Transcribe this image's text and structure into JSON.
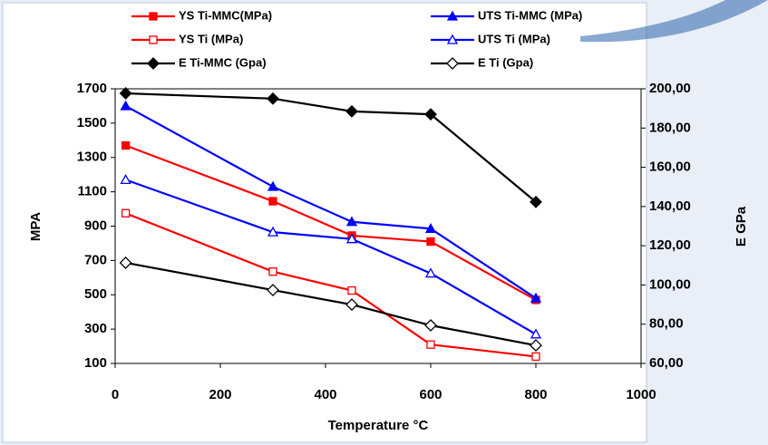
{
  "chart_data": {
    "type": "line",
    "x": [
      20,
      300,
      450,
      600,
      800
    ],
    "xlim": [
      0,
      1000
    ],
    "xticks": [
      0,
      200,
      400,
      600,
      800,
      1000
    ],
    "ylim": [
      100,
      1700
    ],
    "yticks": [
      100,
      300,
      500,
      700,
      900,
      1100,
      1300,
      1500,
      1700
    ],
    "y2lim": [
      60,
      200
    ],
    "y2ticks": [
      {
        "value": 60,
        "label": "60,00"
      },
      {
        "value": 80,
        "label": "80,00"
      },
      {
        "value": 100,
        "label": "100,00"
      },
      {
        "value": 120,
        "label": "120,00"
      },
      {
        "value": 140,
        "label": "140,00"
      },
      {
        "value": 160,
        "label": "160,00"
      },
      {
        "value": 180,
        "label": "180,00"
      },
      {
        "value": 200,
        "label": "200,00"
      }
    ],
    "xlabel": "Temperature °C",
    "ylabel": "MPA",
    "y2label": "E GPa",
    "series": [
      {
        "name": "YS Ti-MMC(MPa)",
        "color": "#ff0000",
        "marker": "square",
        "filled": true,
        "values": [
          1370,
          1045,
          845,
          810,
          470
        ]
      },
      {
        "name": "UTS Ti-MMC  (MPa)",
        "color": "#0000ff",
        "marker": "triangle",
        "filled": true,
        "values": [
          1600,
          1130,
          925,
          885,
          480
        ]
      },
      {
        "name": "YS Ti (MPa)",
        "color": "#ff0000",
        "marker": "square",
        "filled": false,
        "values": [
          975,
          635,
          525,
          210,
          140
        ]
      },
      {
        "name": "UTS Ti (MPa)",
        "color": "#0000ff",
        "marker": "triangle",
        "filled": false,
        "values": [
          1170,
          865,
          825,
          625,
          270
        ]
      },
      {
        "name": "E Ti-MMC (Gpa)",
        "color": "#000000",
        "marker": "diamond",
        "filled": true,
        "axis": "y2",
        "values": [
          197.7,
          195,
          188.5,
          187,
          142.3
        ]
      },
      {
        "name": "E Ti (Gpa)",
        "color": "#000000",
        "marker": "diamond",
        "filled": false,
        "axis": "y2",
        "values": [
          111.3,
          97.4,
          90,
          79.4,
          69.2
        ]
      }
    ]
  }
}
